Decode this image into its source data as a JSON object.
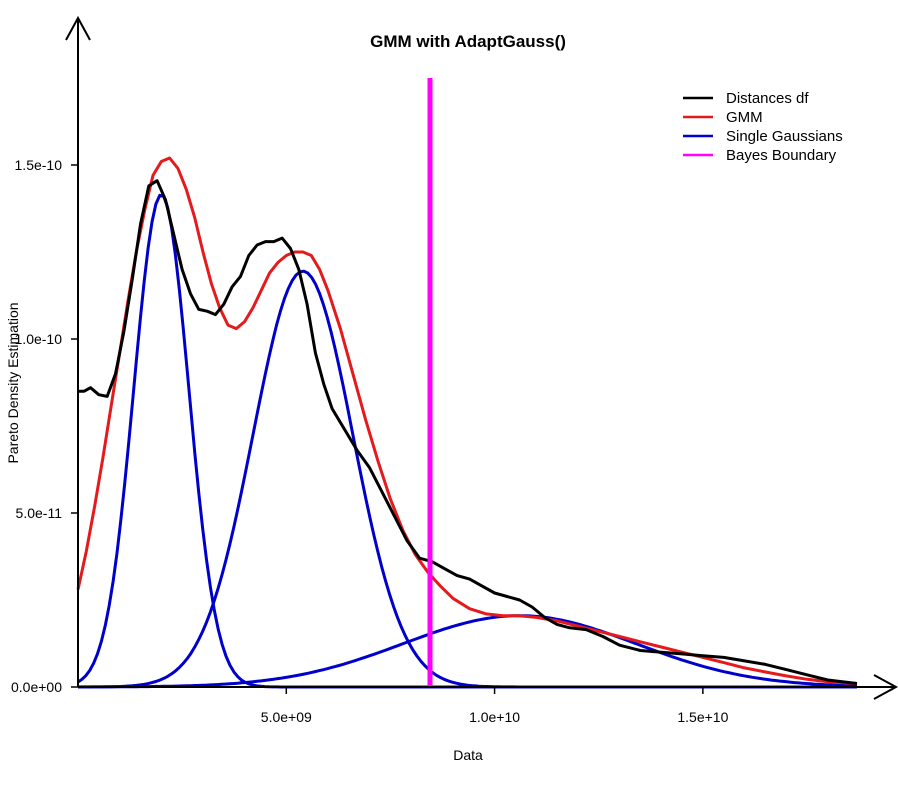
{
  "chart_data": {
    "type": "line",
    "title": "GMM with AdaptGauss()",
    "xlabel": "Data",
    "ylabel": "Pareto Density Estimation",
    "xlim": [
      0,
      18700000000
    ],
    "ylim": [
      0,
      1.75e-10
    ],
    "x_ticks": [
      {
        "value": 5000000000,
        "label": "5.0e+09"
      },
      {
        "value": 10000000000,
        "label": "1.0e+10"
      },
      {
        "value": 15000000000,
        "label": "1.5e+10"
      }
    ],
    "y_ticks": [
      {
        "value": 0,
        "label": "0.0e+00"
      },
      {
        "value": 5e-11,
        "label": "5.0e-11"
      },
      {
        "value": 1e-10,
        "label": "1.0e-10"
      },
      {
        "value": 1.5e-10,
        "label": "1.5e-10"
      }
    ],
    "legend_position": "top-right",
    "series": [
      {
        "name": "Distances df",
        "color": "#000000",
        "x": [
          0,
          150000000.0,
          300000000.0,
          500000000.0,
          700000000.0,
          900000000.0,
          1100000000.0,
          1300000000.0,
          1500000000.0,
          1700000000.0,
          1900000000.0,
          2100000000.0,
          2300000000.0,
          2500000000.0,
          2700000000.0,
          2900000000.0,
          3100000000.0,
          3300000000.0,
          3500000000.0,
          3700000000.0,
          3900000000.0,
          4100000000.0,
          4300000000.0,
          4500000000.0,
          4700000000.0,
          4900000000.0,
          5100000000.0,
          5300000000.0,
          5500000000.0,
          5700000000.0,
          5900000000.0,
          6100000000.0,
          6400000000.0,
          6700000000.0,
          7000000000.0,
          7300000000.0,
          7600000000.0,
          7900000000.0,
          8200000000.0,
          8500000000.0,
          8800000000.0,
          9100000000.0,
          9400000000.0,
          9700000000.0,
          10000000000.0,
          10300000000.0,
          10600000000.0,
          10900000000.0,
          11200000000.0,
          11500000000.0,
          11800000000.0,
          12200000000.0,
          12600000000.0,
          13000000000.0,
          13500000000.0,
          14000000000.0,
          14500000000.0,
          15000000000.0,
          15500000000.0,
          16000000000.0,
          16500000000.0,
          17000000000.0,
          17500000000.0,
          18000000000.0,
          18700000000.0
        ],
        "y": [
          8.5e-11,
          8.5e-11,
          8.6e-11,
          8.4e-11,
          8.35e-11,
          9e-11,
          1.02e-10,
          1.17e-10,
          1.33e-10,
          1.44e-10,
          1.455e-10,
          1.4e-10,
          1.3e-10,
          1.2e-10,
          1.13e-10,
          1.085e-10,
          1.08e-10,
          1.07e-10,
          1.1e-10,
          1.15e-10,
          1.18e-10,
          1.24e-10,
          1.27e-10,
          1.28e-10,
          1.28e-10,
          1.29e-10,
          1.26e-10,
          1.2e-10,
          1.1e-10,
          9.6e-11,
          8.7e-11,
          8e-11,
          7.4e-11,
          6.8e-11,
          6.3e-11,
          5.6e-11,
          4.9e-11,
          4.2e-11,
          3.7e-11,
          3.6e-11,
          3.4e-11,
          3.2e-11,
          3.1e-11,
          2.9e-11,
          2.7e-11,
          2.6e-11,
          2.5e-11,
          2.3e-11,
          2e-11,
          1.8e-11,
          1.7e-11,
          1.65e-11,
          1.45e-11,
          1.2e-11,
          1.05e-11,
          1e-11,
          9.5e-12,
          9e-12,
          8.5e-12,
          7.5e-12,
          6.5e-12,
          5e-12,
          3.5e-12,
          2e-12,
          1e-12
        ]
      },
      {
        "name": "GMM",
        "color": "#e41a1c",
        "x": [
          0,
          200000000.0,
          400000000.0,
          600000000.0,
          800000000.0,
          1000000000.0,
          1200000000.0,
          1400000000.0,
          1600000000.0,
          1800000000.0,
          2000000000.0,
          2200000000.0,
          2400000000.0,
          2600000000.0,
          2800000000.0,
          3000000000.0,
          3200000000.0,
          3400000000.0,
          3600000000.0,
          3800000000.0,
          4000000000.0,
          4200000000.0,
          4400000000.0,
          4600000000.0,
          4800000000.0,
          5000000000.0,
          5200000000.0,
          5400000000.0,
          5600000000.0,
          5800000000.0,
          6000000000.0,
          6300000000.0,
          6600000000.0,
          6900000000.0,
          7200000000.0,
          7500000000.0,
          7800000000.0,
          8100000000.0,
          8400000000.0,
          8700000000.0,
          9000000000.0,
          9400000000.0,
          9800000000.0,
          10200000000.0,
          10600000000.0,
          11000000000.0,
          11500000000.0,
          12000000000.0,
          12500000000.0,
          13000000000.0,
          13500000000.0,
          14000000000.0,
          14500000000.0,
          15000000000.0,
          15500000000.0,
          16000000000.0,
          16500000000.0,
          17000000000.0,
          17500000000.0,
          18000000000.0,
          18700000000.0
        ],
        "y": [
          2.8e-11,
          3.9e-11,
          5.2e-11,
          6.6e-11,
          8.1e-11,
          9.6e-11,
          1.11e-10,
          1.25e-10,
          1.37e-10,
          1.47e-10,
          1.51e-10,
          1.52e-10,
          1.49e-10,
          1.43e-10,
          1.35e-10,
          1.25e-10,
          1.16e-10,
          1.09e-10,
          1.04e-10,
          1.03e-10,
          1.05e-10,
          1.09e-10,
          1.14e-10,
          1.19e-10,
          1.22e-10,
          1.24e-10,
          1.25e-10,
          1.25e-10,
          1.24e-10,
          1.2e-10,
          1.14e-10,
          1.03e-10,
          9e-11,
          7.7e-11,
          6.5e-11,
          5.4e-11,
          4.5e-11,
          3.8e-11,
          3.3e-11,
          2.9e-11,
          2.55e-11,
          2.25e-11,
          2.1e-11,
          2.05e-11,
          2.05e-11,
          2e-11,
          1.9e-11,
          1.75e-11,
          1.6e-11,
          1.45e-11,
          1.3e-11,
          1.15e-11,
          1e-11,
          8.5e-12,
          7e-12,
          5.5e-12,
          4.3e-12,
          3.2e-12,
          2.2e-12,
          1.5e-12,
          1e-12
        ]
      },
      {
        "name": "Single Gaussians",
        "color": "#0000cc",
        "curves": [
          {
            "mean": 2000000000.0,
            "sd": 660000000.0,
            "peak": 1.415e-10
          },
          {
            "mean": 5400000000.0,
            "sd": 1200000000.0,
            "peak": 1.195e-10
          },
          {
            "mean": 10600000000.0,
            "sd": 2800000000.0,
            "peak": 2.05e-11
          }
        ]
      },
      {
        "name": "Bayes Boundary",
        "color": "#ff00ff",
        "x": [
          8450000000.0,
          8450000000.0
        ],
        "y": [
          0,
          1.75e-10
        ]
      }
    ]
  }
}
